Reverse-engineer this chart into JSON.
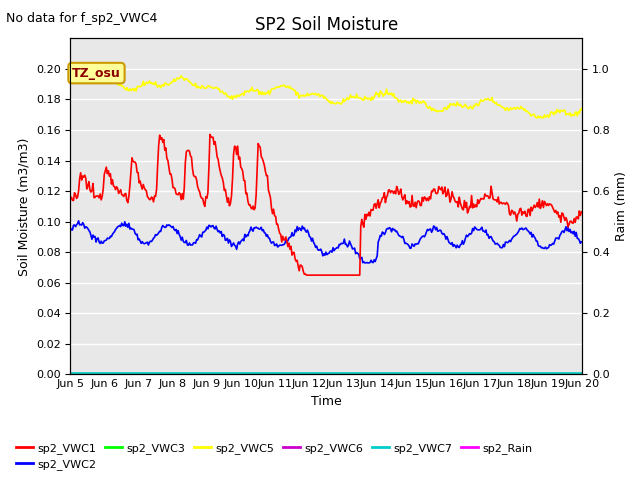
{
  "title": "SP2 Soil Moisture",
  "no_data_text": "No data for f_sp2_VWC4",
  "xlabel": "Time",
  "ylabel_left": "Soil Moisture (m3/m3)",
  "ylabel_right": "Raim (mm)",
  "ylim_left": [
    0,
    0.22
  ],
  "ylim_right": [
    0,
    1.1
  ],
  "yticks_left": [
    0.0,
    0.02,
    0.04,
    0.06,
    0.08,
    0.1,
    0.12,
    0.14,
    0.16,
    0.18,
    0.2
  ],
  "yticks_right": [
    0.0,
    0.2,
    0.4,
    0.6,
    0.8,
    1.0
  ],
  "tz_label": "TZ_osu",
  "bg_color": "#e8e8e8",
  "fig_color": "#ffffff",
  "vwc1_color": "#ff0000",
  "vwc2_color": "#0000ff",
  "vwc3_color": "#00ff00",
  "vwc5_color": "#ffff00",
  "vwc6_color": "#cc00cc",
  "vwc7_color": "#00cccc",
  "rain_color": "#ff00ff",
  "grid_color": "#ffffff",
  "title_fontsize": 12,
  "tick_fontsize": 8,
  "label_fontsize": 9,
  "legend_fontsize": 8
}
